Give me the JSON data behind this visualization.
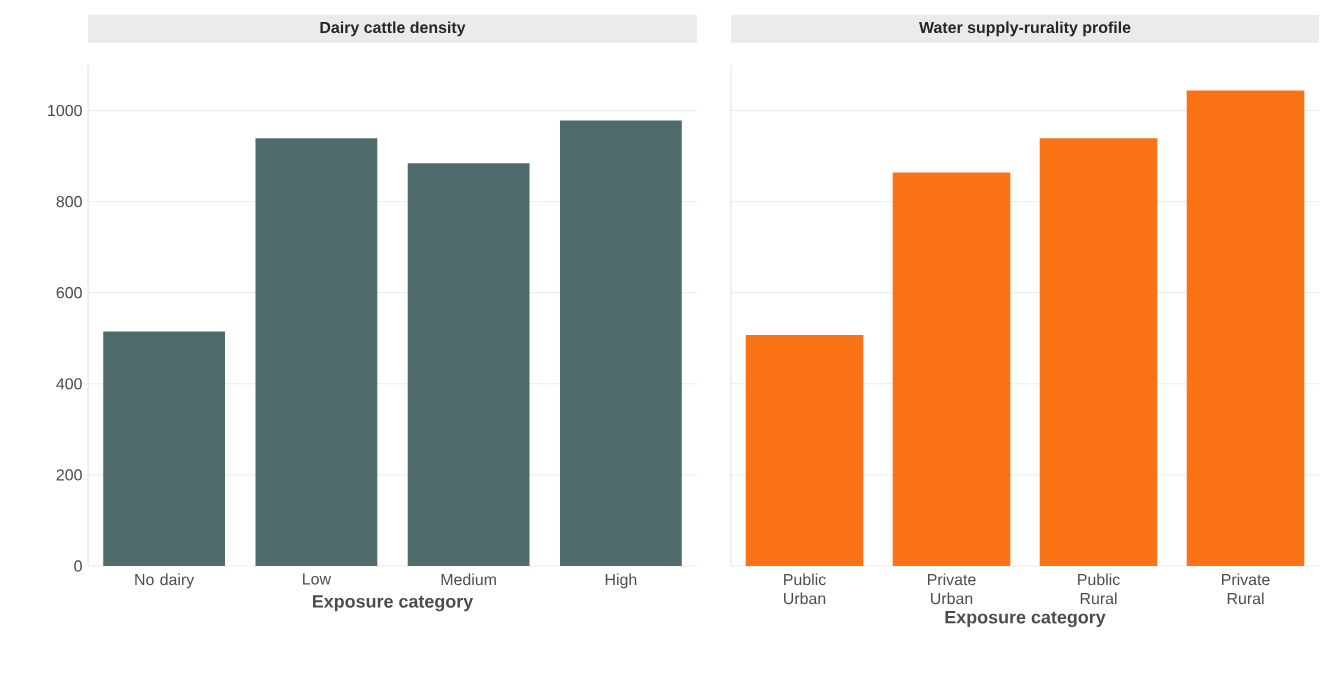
{
  "chart_data": [
    {
      "type": "bar",
      "title": "Dairy cattle density",
      "xlabel": "Exposure category",
      "categories": [
        "No dairy",
        "Low",
        "Medium",
        "High"
      ],
      "values": [
        515,
        939,
        884,
        978
      ],
      "color": "#4f6b6b",
      "ylim": [
        0,
        1100
      ],
      "yticks": [
        0,
        200,
        400,
        600,
        800,
        1000
      ],
      "grid": "y"
    },
    {
      "type": "bar",
      "title": "Water supply-rurality profile",
      "xlabel": "Exposure category",
      "categories": [
        "Public Urban",
        "Private Urban",
        "Public Rural",
        "Private Rural"
      ],
      "values": [
        507,
        864,
        939,
        1044
      ],
      "color": "#f97316",
      "ylim": [
        0,
        1100
      ],
      "yticks": [
        0,
        200,
        400,
        600,
        800,
        1000
      ],
      "grid": "y",
      "tick_labels": "x"
    }
  ]
}
